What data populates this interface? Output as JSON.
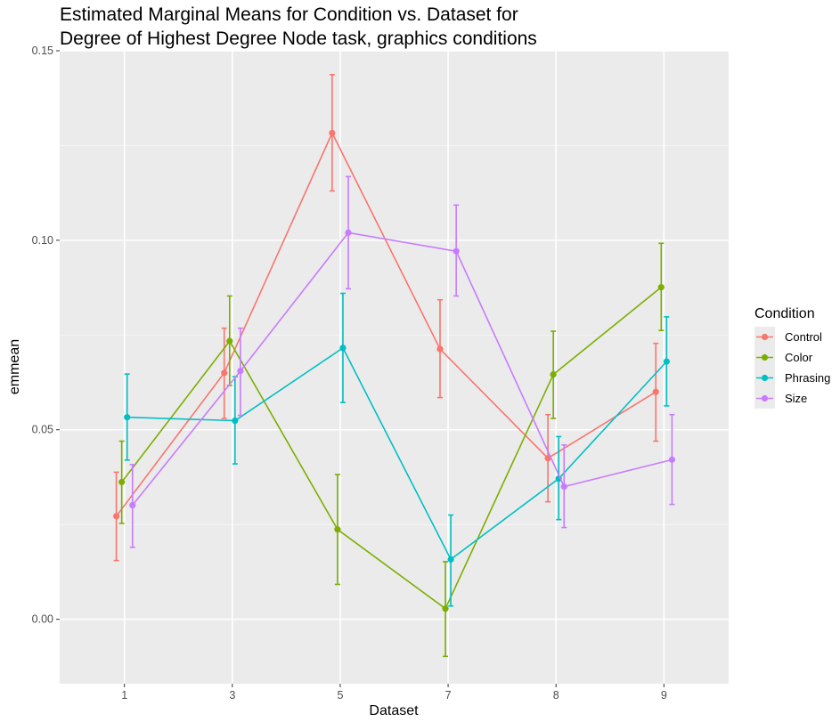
{
  "chart_data": {
    "type": "line",
    "title_lines": [
      "Estimated Marginal Means for Condition vs. Dataset for",
      "Degree of Highest Degree Node task, graphics conditions"
    ],
    "xlabel": "Dataset",
    "ylabel": "emmean",
    "categories": [
      "1",
      "3",
      "5",
      "7",
      "8",
      "9"
    ],
    "ylim": [
      -0.017,
      0.15
    ],
    "y_ticks": [
      0.0,
      0.05,
      0.1,
      0.15
    ],
    "y_tick_labels": [
      "0.00",
      "0.05",
      "0.10",
      "0.15"
    ],
    "grid": true,
    "dodge_offsets": [
      -0.075,
      -0.025,
      0.025,
      0.075
    ],
    "legend": {
      "title": "Condition",
      "placement": "right"
    },
    "series": [
      {
        "name": "Control",
        "color": "#f8766d",
        "values": [
          0.0272,
          0.065,
          0.1283,
          0.0713,
          0.0425,
          0.06
        ],
        "lower": [
          0.0155,
          0.053,
          0.113,
          0.0585,
          0.031,
          0.047
        ],
        "upper": [
          0.0388,
          0.0768,
          0.1437,
          0.0843,
          0.054,
          0.0728
        ]
      },
      {
        "name": "Color",
        "color": "#7cae00",
        "values": [
          0.0362,
          0.0734,
          0.0237,
          0.0028,
          0.0646,
          0.0876
        ],
        "lower": [
          0.0253,
          0.0617,
          0.0092,
          -0.0098,
          0.053,
          0.0762
        ],
        "upper": [
          0.047,
          0.0853,
          0.0382,
          0.0152,
          0.076,
          0.0992
        ]
      },
      {
        "name": "Phrasing",
        "color": "#00bfc4",
        "values": [
          0.0533,
          0.0524,
          0.0716,
          0.0158,
          0.0371,
          0.068
        ],
        "lower": [
          0.042,
          0.041,
          0.0572,
          0.0035,
          0.0263,
          0.0563
        ],
        "upper": [
          0.0647,
          0.064,
          0.086,
          0.0275,
          0.0482,
          0.0798
        ]
      },
      {
        "name": "Size",
        "color": "#c77cff",
        "values": [
          0.0301,
          0.0655,
          0.102,
          0.0971,
          0.035,
          0.0421
        ],
        "lower": [
          0.019,
          0.0538,
          0.0872,
          0.0853,
          0.0242,
          0.0303
        ],
        "upper": [
          0.0408,
          0.0768,
          0.1168,
          0.1093,
          0.046,
          0.054
        ]
      }
    ]
  }
}
